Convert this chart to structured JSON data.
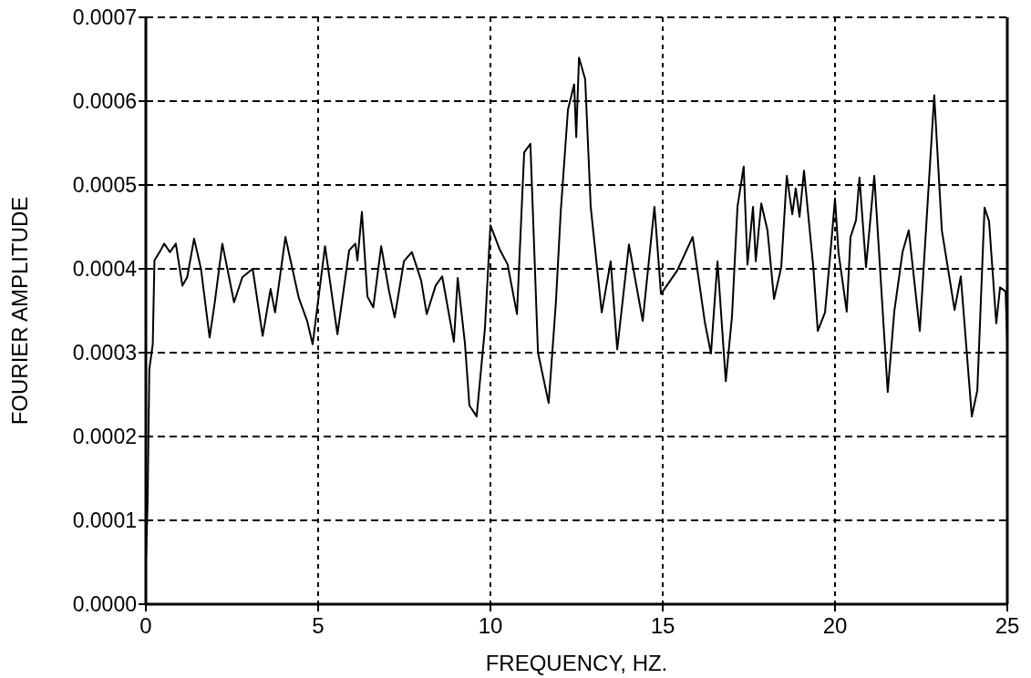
{
  "chart_data": {
    "type": "line",
    "xlabel": "FREQUENCY,  HZ.",
    "ylabel": "FOURIER AMPLITUDE",
    "xlim": [
      0,
      25
    ],
    "xticks": [
      0,
      5,
      10,
      15,
      20,
      25
    ],
    "ylim": [
      0,
      0.0007
    ],
    "yticks": [
      {
        "value": 0,
        "label": "0.0000"
      },
      0.0001,
      0.0002,
      0.0003,
      0.0004,
      0.0005,
      0.0006,
      0.0007
    ],
    "grid": true,
    "line_style": "solid",
    "series": [
      {
        "color": "#000000",
        "x": [
          0,
          0.05,
          0.1,
          0.2,
          0.25,
          0.4,
          0.53,
          0.7,
          0.87,
          1.06,
          1.2,
          1.4,
          1.6,
          1.85,
          2.0,
          2.22,
          2.56,
          2.8,
          3.1,
          3.39,
          3.62,
          3.75,
          4.05,
          4.44,
          4.68,
          4.84,
          5.2,
          5.56,
          5.9,
          6.08,
          6.14,
          6.27,
          6.43,
          6.6,
          6.83,
          7.06,
          7.22,
          7.49,
          7.72,
          7.99,
          8.15,
          8.41,
          8.6,
          8.94,
          9.05,
          9.26,
          9.39,
          9.6,
          9.84,
          10.0,
          10.26,
          10.5,
          10.77,
          10.98,
          11.16,
          11.38,
          11.69,
          11.9,
          12.04,
          12.25,
          12.43,
          12.49,
          12.57,
          12.75,
          12.91,
          13.23,
          13.49,
          13.68,
          14.02,
          14.42,
          14.76,
          14.95,
          15.42,
          15.87,
          16.22,
          16.4,
          16.59,
          16.83,
          17.01,
          17.17,
          17.35,
          17.46,
          17.62,
          17.7,
          17.86,
          18.04,
          18.23,
          18.44,
          18.6,
          18.76,
          18.86,
          18.97,
          19.1,
          19.37,
          19.5,
          19.71,
          19.89,
          20.0,
          20.1,
          20.34,
          20.45,
          20.61,
          20.71,
          20.9,
          21.14,
          21.53,
          21.72,
          21.96,
          22.14,
          22.46,
          22.88,
          23.1,
          23.33,
          23.47,
          23.65,
          23.97,
          24.13,
          24.34,
          24.47,
          24.68,
          24.79,
          24.95,
          25
        ],
        "values": [
          5e-05,
          0.00012,
          0.00028,
          0.00031,
          0.00041,
          0.00042,
          0.00043,
          0.00042,
          0.00043,
          0.00038,
          0.00039,
          0.000436,
          0.0004,
          0.000318,
          0.00036,
          0.00043,
          0.00036,
          0.00039,
          0.0004,
          0.00032,
          0.000376,
          0.000348,
          0.000438,
          0.000365,
          0.000338,
          0.00031,
          0.000427,
          0.000322,
          0.000422,
          0.00043,
          0.00041,
          0.000468,
          0.000367,
          0.000354,
          0.000427,
          0.000373,
          0.000342,
          0.000409,
          0.00042,
          0.000386,
          0.000346,
          0.00038,
          0.000391,
          0.000313,
          0.000389,
          0.000311,
          0.000237,
          0.000224,
          0.000329,
          0.000452,
          0.000424,
          0.000405,
          0.000346,
          0.000539,
          0.000549,
          0.0003,
          0.00024,
          0.00036,
          0.000468,
          0.00059,
          0.00062,
          0.000557,
          0.000652,
          0.000626,
          0.000474,
          0.000348,
          0.000409,
          0.000304,
          0.000429,
          0.000338,
          0.000474,
          0.00037,
          0.000398,
          0.000438,
          0.000337,
          0.000299,
          0.000409,
          0.000266,
          0.000343,
          0.000474,
          0.000522,
          0.000405,
          0.000474,
          0.000409,
          0.000478,
          0.000446,
          0.000364,
          0.000402,
          0.000511,
          0.000465,
          0.000496,
          0.000462,
          0.000517,
          0.000402,
          0.000326,
          0.000348,
          0.00043,
          0.000484,
          0.00042,
          0.000349,
          0.000438,
          0.000458,
          0.000509,
          0.000402,
          0.000511,
          0.000253,
          0.000349,
          0.00042,
          0.000446,
          0.000326,
          0.000607,
          0.000446,
          0.000387,
          0.000351,
          0.000391,
          0.000224,
          0.000255,
          0.000473,
          0.000457,
          0.000335,
          0.000378,
          0.000373,
          0.00031
        ]
      }
    ]
  }
}
